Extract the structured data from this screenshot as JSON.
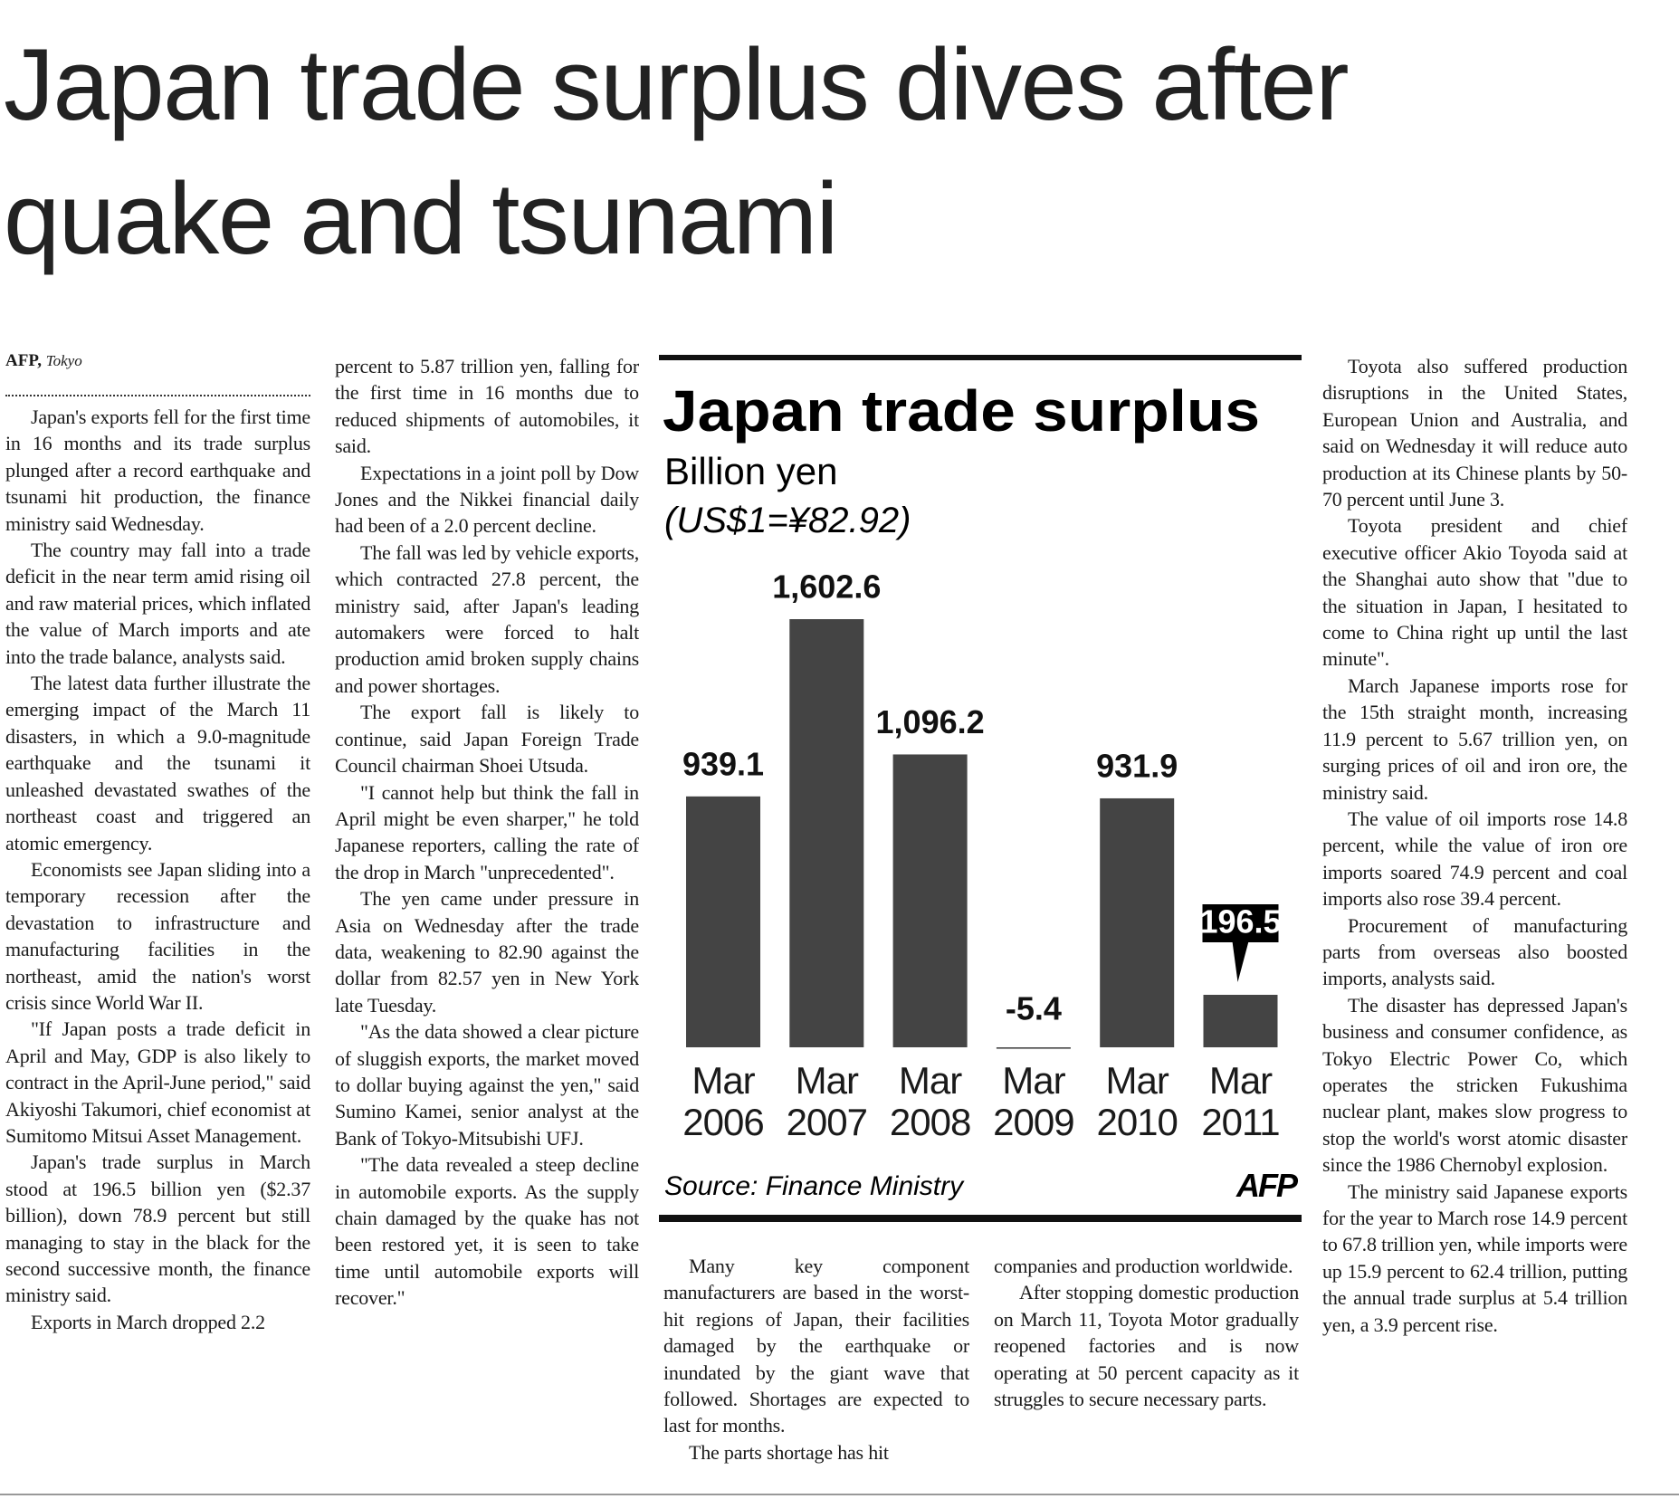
{
  "headline": [
    "Japan trade surplus dives after",
    "quake and tsunami"
  ],
  "byline": {
    "agency": "AFP,",
    "place": "Tokyo"
  },
  "columns": [
    [
      "Japan's exports fell for the first time in 16 months and its trade surplus plunged after a record earthquake and tsunami hit production, the finance ministry said Wednesday.",
      "The country may fall into a trade deficit in the near term amid rising oil and raw material prices, which inflated the value of March imports and ate into the trade balance, analysts said.",
      "The latest data further illustrate the emerging impact of the March 11 disasters, in which a 9.0-magnitude earthquake and the tsunami it unleashed devastated swathes of the northeast coast and triggered an atomic emergency.",
      "Economists see Japan sliding into a temporary recession after the devastation to infrastructure and manufacturing facilities in the northeast, amid the nation's worst crisis since World War II.",
      "\"If Japan posts a trade deficit in April and May, GDP is also likely to contract in the April-June period,\" said Akiyoshi Takumori, chief economist at Sumitomo Mitsui Asset Management.",
      "Japan's trade surplus in March stood at 196.5 billion yen ($2.37 billion), down 78.9 percent but still managing to stay in the black for the second successive month, the finance ministry said.",
      "Exports in March dropped 2.2"
    ],
    [
      "percent to 5.87 trillion yen, falling for the first time in 16 months due to reduced shipments of automobiles, it said.",
      "Expectations in a joint poll by Dow Jones and the Nikkei financial daily had been of a 2.0 percent decline.",
      "The fall was led by vehicle exports, which contracted 27.8 percent, the ministry said, after Japan's leading automakers were forced to halt production amid broken supply chains and power shortages.",
      "The export fall is likely to continue, said Japan Foreign Trade Council chairman Shoei Utsuda.",
      "\"I cannot help but think the fall in April might be even sharper,\" he told Japanese reporters, calling the rate of the drop in March \"unprecedented\".",
      "The yen came under pressure in Asia on Wednesday after the trade data, weakening to 82.90 against the dollar from 82.57 yen in New York late Tuesday.",
      "\"As the data showed a clear picture of sluggish exports, the market moved to dollar buying against the yen,\" said Sumino Kamei, senior analyst at the Bank of Tokyo-Mitsubishi UFJ.",
      "\"The data revealed a steep decline in automobile exports. As the supply chain damaged by the quake has not been restored yet, it is seen to take time until automobile exports will recover.\""
    ],
    [
      "Many key component manufacturers are based in the worst-hit regions of Japan, their facilities damaged by the earthquake or inundated by the giant wave that followed. Shortages are expected to last for months.",
      "The parts shortage has hit"
    ],
    [
      "companies and production worldwide.",
      "After stopping domestic production on March 11, Toyota Motor gradually reopened factories and is now operating at 50 percent capacity as it struggles to secure necessary parts."
    ],
    [
      "Toyota also suffered production disruptions in the United States, European Union and Australia, and said on Wednesday it will reduce auto production at its Chinese plants by 50-70 percent until June 3.",
      "Toyota president and chief executive officer Akio Toyoda said at the Shanghai auto show that \"due to the situation in Japan, I hesitated to come to China right up until the last minute\".",
      "March Japanese imports rose for the 15th straight month, increasing 11.9 percent to 5.67 trillion yen, on surging prices of oil and iron ore, the ministry said.",
      "The value of oil imports rose 14.8 percent, while the value of iron ore imports soared 74.9 percent and coal imports also rose 39.4 percent.",
      "Procurement of manufacturing parts from overseas also boosted imports, analysts said.",
      "The disaster has depressed Japan's business and consumer confidence, as Tokyo Electric Power Co, which operates the stricken Fukushima nuclear plant, makes slow progress to stop the world's worst atomic disaster since the 1986 Chernobyl explosion.",
      "The ministry said Japanese exports for the year to March rose 14.9 percent to 67.8 trillion yen, while imports were up 15.9 percent to 62.4 trillion, putting the annual trade surplus at 5.4 trillion yen, a 3.9 percent rise."
    ]
  ],
  "chart_data": {
    "type": "bar",
    "title": "Japan trade surplus",
    "subtitle": "Billion yen",
    "note": "(US$1=¥82.92)",
    "categories": [
      "Mar 2006",
      "Mar 2007",
      "Mar 2008",
      "Mar 2009",
      "Mar 2010",
      "Mar 2011"
    ],
    "values": [
      939.1,
      1602.6,
      1096.2,
      -5.4,
      931.9,
      196.5
    ],
    "value_labels": [
      "939.1",
      "1,602.6",
      "1,096.2",
      "-5.4",
      "931.9",
      "196.5"
    ],
    "color": "#444444",
    "source": "Source: Finance Ministry",
    "logo": "AFP"
  }
}
